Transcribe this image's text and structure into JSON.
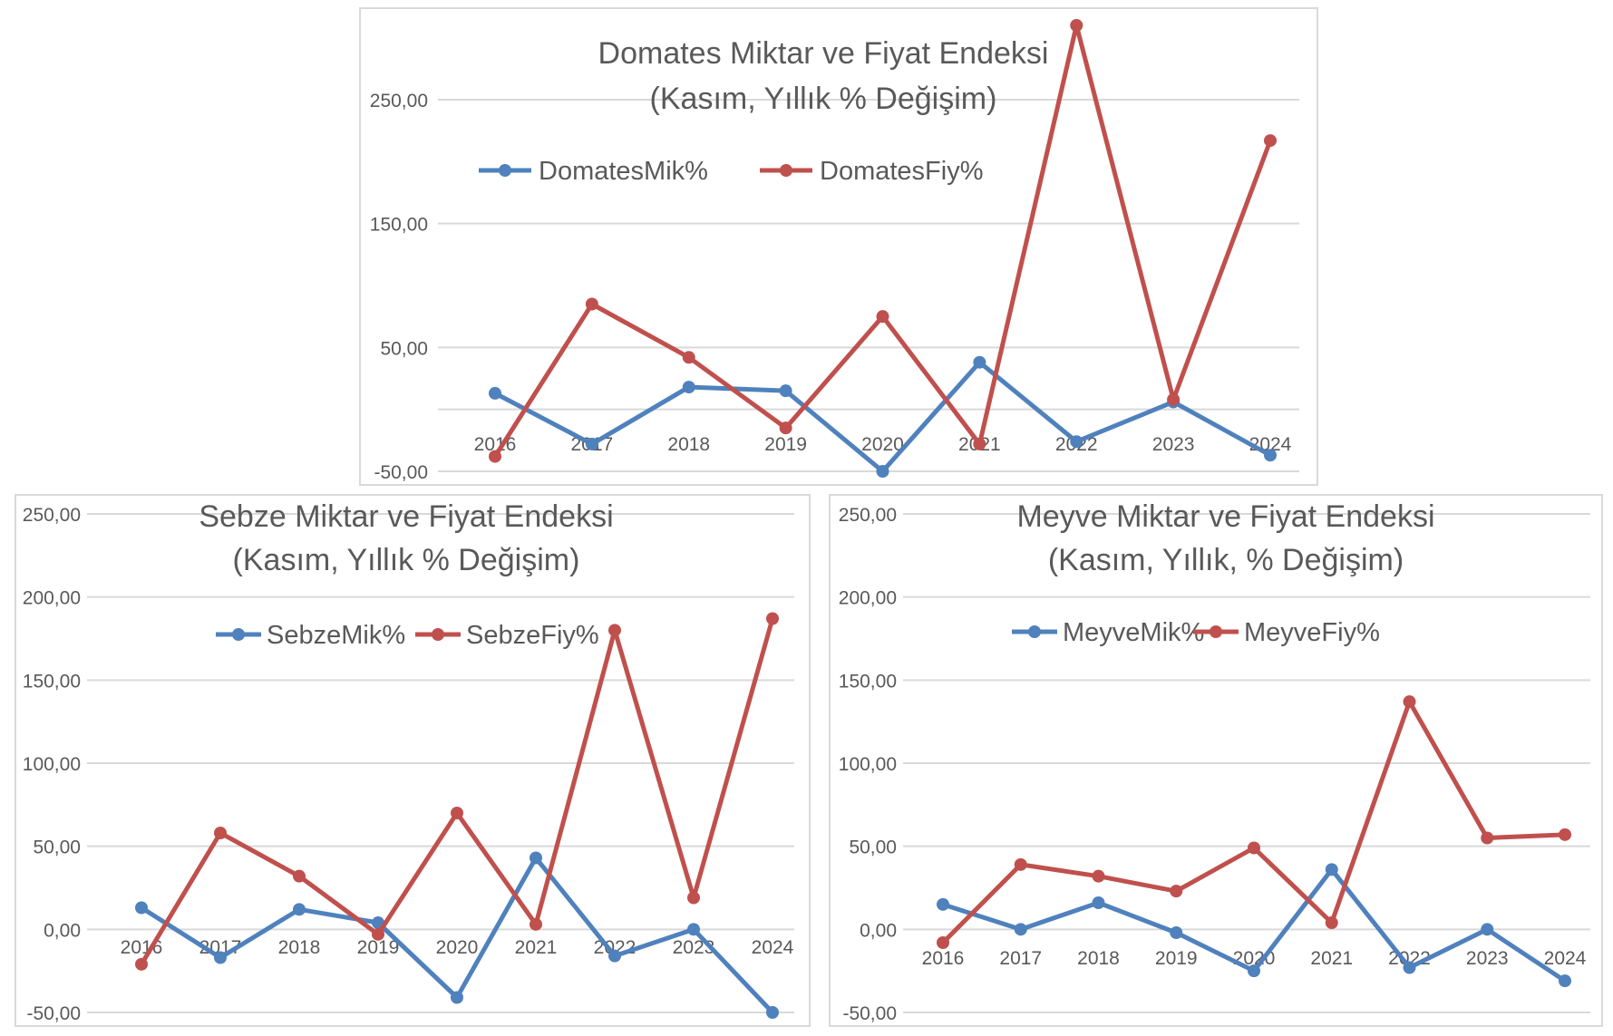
{
  "chart_data": [
    {
      "type": "line",
      "title": "Domates Miktar ve Fiyat Endeksi",
      "subtitle": "(Kasım, Yıllık % Değişim)",
      "categories": [
        "2016",
        "2017",
        "2018",
        "2019",
        "2020",
        "2021",
        "2022",
        "2023",
        "2024"
      ],
      "ylim": [
        -50,
        310
      ],
      "yticks": [
        -50,
        50,
        150,
        250
      ],
      "ytick_labels": [
        "-50,00",
        "50,00",
        "150,00",
        "250,00"
      ],
      "grid": true,
      "legend": "top-left",
      "series": [
        {
          "name": "DomatesMik%",
          "color": "#4f81bd",
          "values": [
            13,
            -28,
            18,
            15,
            -50,
            38,
            -26,
            6,
            -37
          ]
        },
        {
          "name": "DomatesFiy%",
          "color": "#c0504d",
          "values": [
            -38,
            85,
            42,
            -15,
            75,
            -28,
            310,
            8,
            217
          ]
        }
      ]
    },
    {
      "type": "line",
      "title": "Sebze  Miktar ve Fiyat Endeksi",
      "subtitle": "(Kasım,  Yıllık % Değişim)",
      "categories": [
        "2016",
        "2017",
        "2018",
        "2019",
        "2020",
        "2021",
        "2022",
        "2023",
        "2024"
      ],
      "ylim": [
        -50,
        250
      ],
      "yticks": [
        -50,
        0,
        50,
        100,
        150,
        200,
        250
      ],
      "ytick_labels": [
        "-50,00",
        "0,00",
        "50,00",
        "100,00",
        "150,00",
        "200,00",
        "250,00"
      ],
      "grid": true,
      "legend": "top-center",
      "series": [
        {
          "name": "SebzeMik%",
          "color": "#4f81bd",
          "values": [
            13,
            -17,
            12,
            4,
            -41,
            43,
            -16,
            0,
            -50
          ]
        },
        {
          "name": "SebzeFiy%",
          "color": "#c0504d",
          "values": [
            -21,
            58,
            32,
            -3,
            70,
            3,
            180,
            19,
            187
          ]
        }
      ]
    },
    {
      "type": "line",
      "title": "Meyve Miktar ve Fiyat Endeksi",
      "subtitle": "(Kasım, Yıllık, % Değişim)",
      "categories": [
        "2016",
        "2017",
        "2018",
        "2019",
        "2020",
        "2021",
        "2022",
        "2023",
        "2024"
      ],
      "ylim": [
        -50,
        250
      ],
      "yticks": [
        -50,
        0,
        50,
        100,
        150,
        200,
        250
      ],
      "ytick_labels": [
        "-50,00",
        "0,00",
        "50,00",
        "100,00",
        "150,00",
        "200,00",
        "250,00"
      ],
      "grid": true,
      "legend": "top-center",
      "series": [
        {
          "name": "MeyveMik%",
          "color": "#4f81bd",
          "values": [
            15,
            0,
            16,
            -2,
            -25,
            36,
            -23,
            0,
            -31
          ]
        },
        {
          "name": "MeyveFiy%",
          "color": "#c0504d",
          "values": [
            -8,
            39,
            32,
            23,
            49,
            4,
            137,
            55,
            57
          ]
        }
      ]
    }
  ]
}
